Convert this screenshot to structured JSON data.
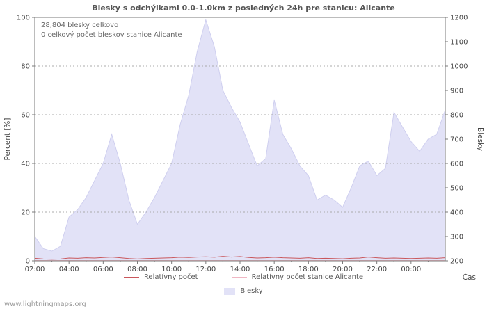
{
  "page": {
    "title": "Blesky s odchýlkami 0.0-1.0km z posledných 24h pre stanicu: Alicante",
    "watermark": "www.lightningmaps.org"
  },
  "annotations": {
    "line1": "28,804 blesky celkovo",
    "line2": "0 celkový počet bleskov stanice Alicante"
  },
  "legend": {
    "items": [
      {
        "label": "Relatívny počet",
        "color": "#c9575c",
        "type": "line"
      },
      {
        "label": "Relatívny počet stanice Alicante",
        "color": "#f0b6c3",
        "type": "line"
      },
      {
        "label": "Blesky",
        "color": "#e2e2f7",
        "type": "area"
      }
    ]
  },
  "chart_data": {
    "type": "area",
    "title": "Blesky s odchýlkami 0.0-1.0km z posledných 24h pre stanicu: Alicante",
    "xlabel": "Čas",
    "ylabel_left": "Percent [%]",
    "ylabel_right": "Blesky",
    "grid": "horizontal-dotted",
    "points_per_series": 49,
    "time_step_minutes": 30,
    "time_start": "02:00",
    "x_tick_labels": [
      "02:00",
      "04:00",
      "06:00",
      "08:00",
      "10:00",
      "12:00",
      "14:00",
      "16:00",
      "18:00",
      "20:00",
      "22:00",
      "00:00"
    ],
    "x_tick_indices": [
      0,
      4,
      8,
      12,
      16,
      20,
      24,
      28,
      32,
      36,
      40,
      44
    ],
    "left_axis": {
      "min": 0,
      "max": 100,
      "ticks": [
        0,
        20,
        40,
        60,
        80,
        100
      ]
    },
    "right_axis": {
      "min": 200,
      "max": 1200,
      "ticks": [
        200,
        300,
        400,
        500,
        600,
        700,
        800,
        900,
        1000,
        1100,
        1200
      ]
    },
    "series": [
      {
        "name": "Blesky",
        "axis": "right",
        "style": "area",
        "color": "#e2e2f7",
        "values": [
          300,
          250,
          240,
          260,
          380,
          410,
          460,
          530,
          600,
          720,
          600,
          450,
          350,
          400,
          460,
          530,
          600,
          760,
          880,
          1060,
          1190,
          1080,
          900,
          830,
          770,
          680,
          590,
          620,
          860,
          720,
          660,
          590,
          550,
          450,
          470,
          450,
          420,
          500,
          590,
          610,
          550,
          580,
          810,
          750,
          690,
          650,
          700,
          720,
          820
        ]
      },
      {
        "name": "Relatívny počet",
        "axis": "left",
        "style": "line",
        "color": "#c9575c",
        "values": [
          0.9,
          0.6,
          0.5,
          0.6,
          1.0,
          0.9,
          1.1,
          1.0,
          1.2,
          1.4,
          1.1,
          0.8,
          0.6,
          0.8,
          0.9,
          1.0,
          1.1,
          1.3,
          1.2,
          1.4,
          1.5,
          1.3,
          1.7,
          1.4,
          1.6,
          1.2,
          1.0,
          1.1,
          1.3,
          1.1,
          1.0,
          0.9,
          1.1,
          0.8,
          0.9,
          0.8,
          0.7,
          0.9,
          1.0,
          1.4,
          1.1,
          0.9,
          1.0,
          0.9,
          0.8,
          0.9,
          1.0,
          0.9,
          1.1
        ]
      },
      {
        "name": "Relatívny počet stanice Alicante",
        "axis": "left",
        "style": "line",
        "color": "#f0b6c3",
        "values": [
          0,
          0,
          0,
          0,
          0,
          0,
          0,
          0,
          0,
          0,
          0,
          0,
          0,
          0,
          0,
          0,
          0,
          0,
          0,
          0,
          0,
          0,
          0,
          0,
          0,
          0,
          0,
          0,
          0,
          0,
          0,
          0,
          0,
          0,
          0,
          0,
          0,
          0,
          0,
          0,
          0,
          0,
          0,
          0,
          0,
          0,
          0,
          0,
          0
        ]
      }
    ]
  }
}
